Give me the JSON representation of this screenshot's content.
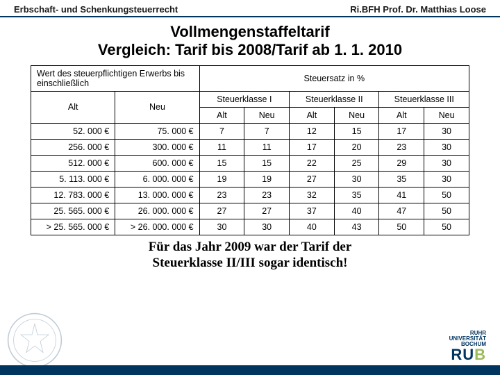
{
  "header": {
    "left": "Erbschaft- und Schenkungsteuerrecht",
    "right": "Ri.BFH Prof. Dr. Matthias Loose"
  },
  "title": {
    "line1": "Vollmengenstaffeltarif",
    "line2": "Vergleich: Tarif bis 2008/Tarif ab 1. 1. 2010"
  },
  "table": {
    "h_wert": "Wert des steuerpflichtigen Erwerbs bis einschließlich",
    "h_rate": "Steuersatz in %",
    "h_alt": "Alt",
    "h_neu": "Neu",
    "h_sk1": "Steuerklasse I",
    "h_sk2": "Steuerklasse II",
    "h_sk3": "Steuerklasse III",
    "sub_alt": "Alt",
    "sub_neu": "Neu",
    "rows": [
      {
        "alt": "52. 000 €",
        "neu": "75. 000 €",
        "v": [
          "7",
          "7",
          "12",
          "15",
          "17",
          "30"
        ]
      },
      {
        "alt": "256. 000 €",
        "neu": "300. 000 €",
        "v": [
          "11",
          "11",
          "17",
          "20",
          "23",
          "30"
        ]
      },
      {
        "alt": "512. 000 €",
        "neu": "600. 000 €",
        "v": [
          "15",
          "15",
          "22",
          "25",
          "29",
          "30"
        ]
      },
      {
        "alt": "5. 113. 000 €",
        "neu": "6. 000. 000 €",
        "v": [
          "19",
          "19",
          "27",
          "30",
          "35",
          "30"
        ]
      },
      {
        "alt": "12. 783. 000 €",
        "neu": "13. 000. 000 €",
        "v": [
          "23",
          "23",
          "32",
          "35",
          "41",
          "50"
        ]
      },
      {
        "alt": "25. 565. 000 €",
        "neu": "26. 000. 000 €",
        "v": [
          "27",
          "27",
          "37",
          "40",
          "47",
          "50"
        ]
      },
      {
        "alt": "> 25. 565. 000 €",
        "neu": "> 26. 000. 000 €",
        "v": [
          "30",
          "30",
          "40",
          "43",
          "50",
          "50"
        ]
      }
    ]
  },
  "caption": {
    "line1": "Für das Jahr 2009 war der Tarif der",
    "line2": "Steuerklasse II/III sogar identisch!"
  },
  "footer": {
    "uni1": "RUHR",
    "uni2": "UNIVERSITÄT",
    "uni3": "BOCHUM",
    "brand": "RU",
    "brand_accent": "B"
  }
}
